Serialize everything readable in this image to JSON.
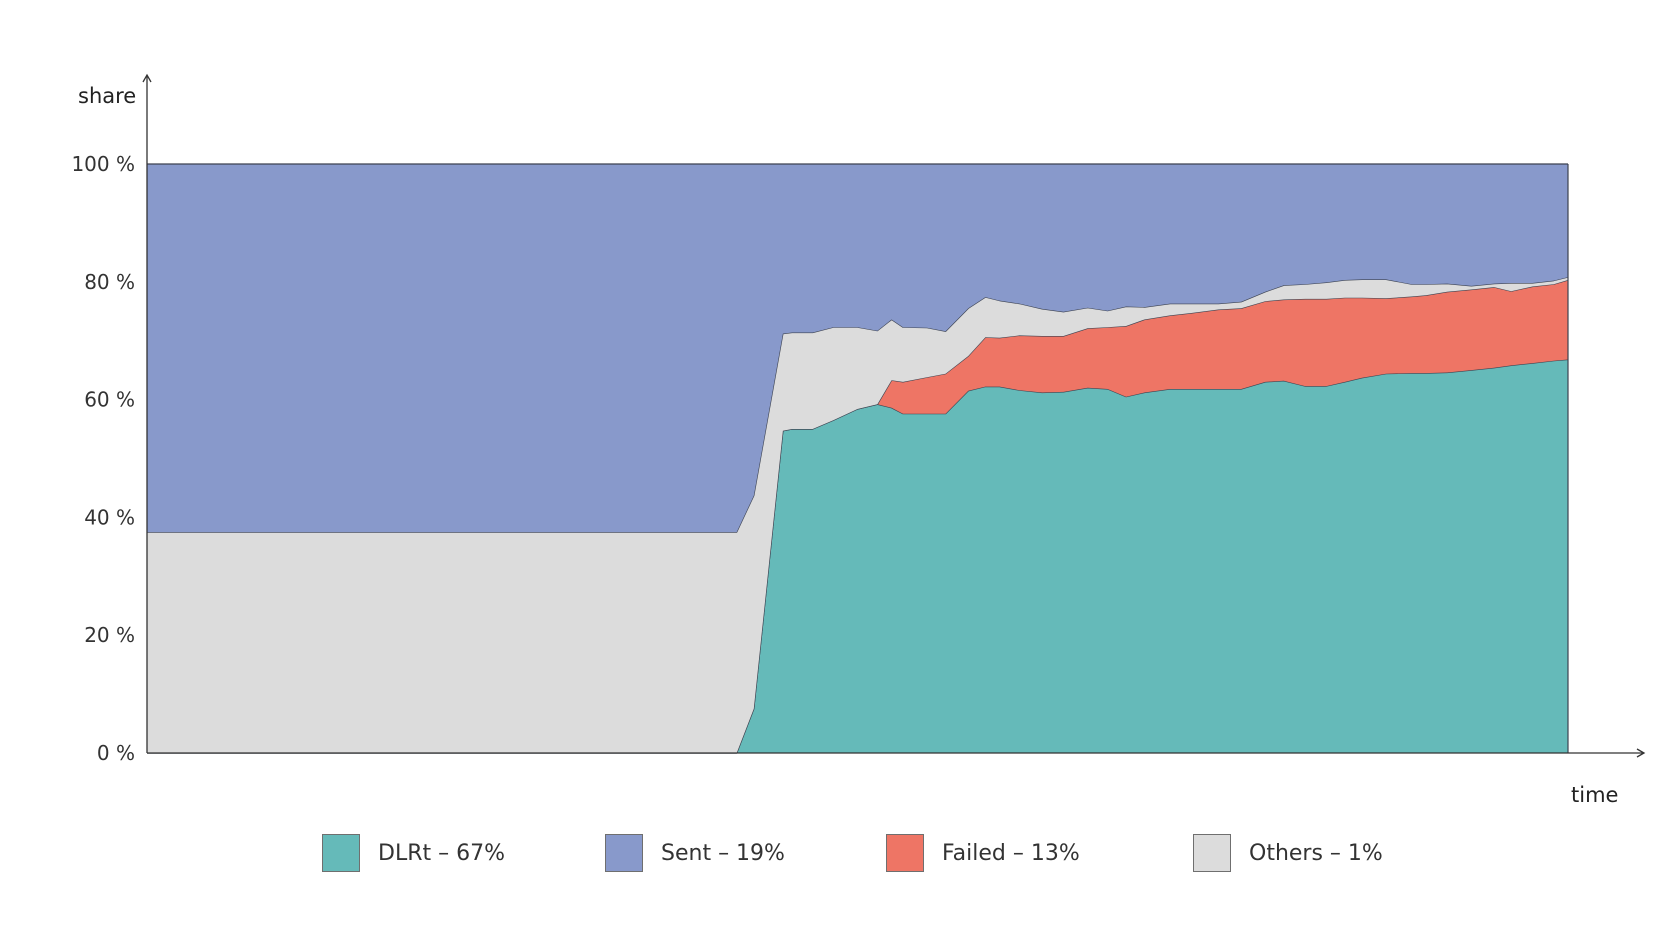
{
  "chart_data": {
    "type": "area",
    "stacked": "percent",
    "xlabel": "time",
    "ylabel": "share",
    "ylim": [
      0,
      100
    ],
    "y_ticks": [
      "0 %",
      "20 %",
      "40 %",
      "60 %",
      "80 %",
      "100 %"
    ],
    "x": [
      0,
      0.415,
      0.427,
      0.4475,
      0.454,
      0.4685,
      0.483,
      0.5,
      0.514,
      0.524,
      0.532,
      0.549,
      0.562,
      0.578,
      0.59,
      0.6,
      0.614,
      0.63,
      0.645,
      0.662,
      0.676,
      0.689,
      0.702,
      0.72,
      0.735,
      0.754,
      0.77,
      0.787,
      0.8,
      0.815,
      0.83,
      0.843,
      0.855,
      0.872,
      0.89,
      0.9,
      0.915,
      0.932,
      0.948,
      0.96,
      0.975,
      0.99,
      1.0
    ],
    "series": [
      {
        "name": "DLRt",
        "color": "#65bab9",
        "values": [
          0,
          0,
          7.5,
          54.7,
          55,
          55,
          56.5,
          58.4,
          59.2,
          58.6,
          57.6,
          57.6,
          57.6,
          61.5,
          62.2,
          62.2,
          61.6,
          61.2,
          61.3,
          62,
          61.8,
          60.5,
          61.2,
          61.8,
          61.8,
          61.8,
          61.8,
          63,
          63.2,
          62.3,
          62.3,
          63,
          63.7,
          64.4,
          64.5,
          64.5,
          64.6,
          65,
          65.4,
          65.8,
          66.2,
          66.6,
          66.8
        ]
      },
      {
        "name": "Failed",
        "color": "#ee7565",
        "values": [
          0,
          0,
          0,
          0,
          0,
          0,
          0,
          0,
          0,
          4.7,
          5.4,
          6.2,
          6.8,
          5.9,
          8.4,
          8.3,
          9.3,
          9.6,
          9.5,
          10.1,
          10.5,
          12,
          12.4,
          12.5,
          12.9,
          13.5,
          13.7,
          13.7,
          13.8,
          14.8,
          14.8,
          14.3,
          13.6,
          12.8,
          13,
          13.2,
          13.7,
          13.7,
          13.7,
          12.6,
          13,
          13,
          13.5
        ]
      },
      {
        "name": "Others",
        "color": "#dcdcdc",
        "values": [
          37.5,
          37.5,
          36.2,
          16.5,
          16.4,
          16.4,
          15.8,
          13.9,
          12.5,
          10.3,
          9.3,
          8.4,
          7.2,
          8.1,
          6.8,
          6.3,
          5.4,
          4.6,
          4.1,
          3.5,
          2.8,
          3.3,
          2.1,
          2,
          1.6,
          1,
          1.1,
          1.6,
          2.4,
          2.5,
          2.8,
          3,
          3.1,
          3.2,
          2.1,
          1.9,
          1.4,
          0.6,
          0.6,
          1.4,
          0.6,
          0.6,
          0.5
        ]
      },
      {
        "name": "Sent",
        "color": "#8899cb",
        "values": [
          62.5,
          62.5,
          56.3,
          28.8,
          28.6,
          28.6,
          27.7,
          27.7,
          28.3,
          26.4,
          27.7,
          27.8,
          28.4,
          24.5,
          22.6,
          23.2,
          23.7,
          24.6,
          25.1,
          24.4,
          24.9,
          24.2,
          24.3,
          23.7,
          23.7,
          23.7,
          23.4,
          21.7,
          20.6,
          20.4,
          20.1,
          19.7,
          19.6,
          19.6,
          20.4,
          20.4,
          20.3,
          20.7,
          20.3,
          20.2,
          20.2,
          19.8,
          19.2
        ]
      }
    ],
    "grid": false
  },
  "legend": [
    {
      "label": "DLRt – 67%",
      "color": "#65bab9"
    },
    {
      "label": "Sent – 19%",
      "color": "#8899cb"
    },
    {
      "label": "Failed – 13%",
      "color": "#ee7565"
    },
    {
      "label": "Others – 1%",
      "color": "#dcdcdc"
    }
  ]
}
